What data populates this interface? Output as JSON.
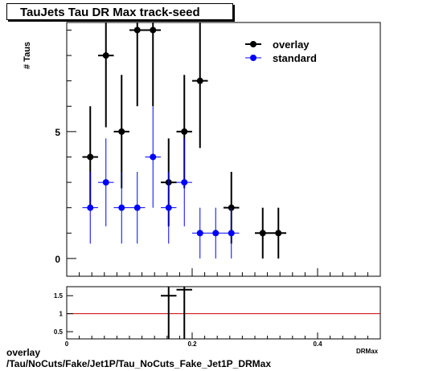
{
  "title": "TauJets Tau DR Max track-seed",
  "caption": {
    "line1": "overlay",
    "line2": "/Tau/NoCuts/Fake/Jet1P/Tau_NoCuts_Fake_Jet1P_DRMax"
  },
  "colors": {
    "overlay": "#000000",
    "standard": "#0000ff",
    "ratio_line": "#cc0000"
  },
  "chart_data": [
    {
      "type": "scatter",
      "ylabel": "# Taus",
      "xlabel": "DRMax",
      "xlim": [
        0,
        0.5
      ],
      "ylim": [
        -0.7,
        9.3
      ],
      "yticks": [
        {
          "value": 0,
          "label": "0"
        },
        {
          "value": 5,
          "label": "5"
        }
      ],
      "legend_position": "top-right",
      "bin_width": 0.025,
      "series": [
        {
          "name": "overlay",
          "x": [
            0.0375,
            0.0625,
            0.0875,
            0.1125,
            0.1375,
            0.1625,
            0.1875,
            0.2125,
            0.2625,
            0.3125,
            0.3375
          ],
          "y": [
            4,
            8,
            5,
            9,
            9,
            3,
            5,
            7,
            2,
            1,
            1
          ]
        },
        {
          "name": "standard",
          "x": [
            0.0375,
            0.0625,
            0.0875,
            0.1125,
            0.1375,
            0.1625,
            0.1875,
            0.2125,
            0.2375,
            0.2625
          ],
          "y": [
            2,
            3,
            2,
            2,
            4,
            2,
            3,
            1,
            1,
            1
          ]
        }
      ]
    },
    {
      "type": "scatter",
      "xlim": [
        0,
        0.5
      ],
      "ylim": [
        0.3,
        1.75
      ],
      "xticks": [
        {
          "value": 0,
          "label": "0"
        },
        {
          "value": 0.2,
          "label": "0.2"
        },
        {
          "value": 0.4,
          "label": "0.4"
        }
      ],
      "yticks": [
        {
          "value": 0.5,
          "label": "0.5"
        },
        {
          "value": 1,
          "label": "1"
        },
        {
          "value": 1.5,
          "label": "1.5"
        }
      ],
      "reference_line": 1,
      "series": [
        {
          "x": [
            0.1625,
            0.1875
          ],
          "y": [
            1.5,
            1.667
          ]
        }
      ]
    }
  ]
}
